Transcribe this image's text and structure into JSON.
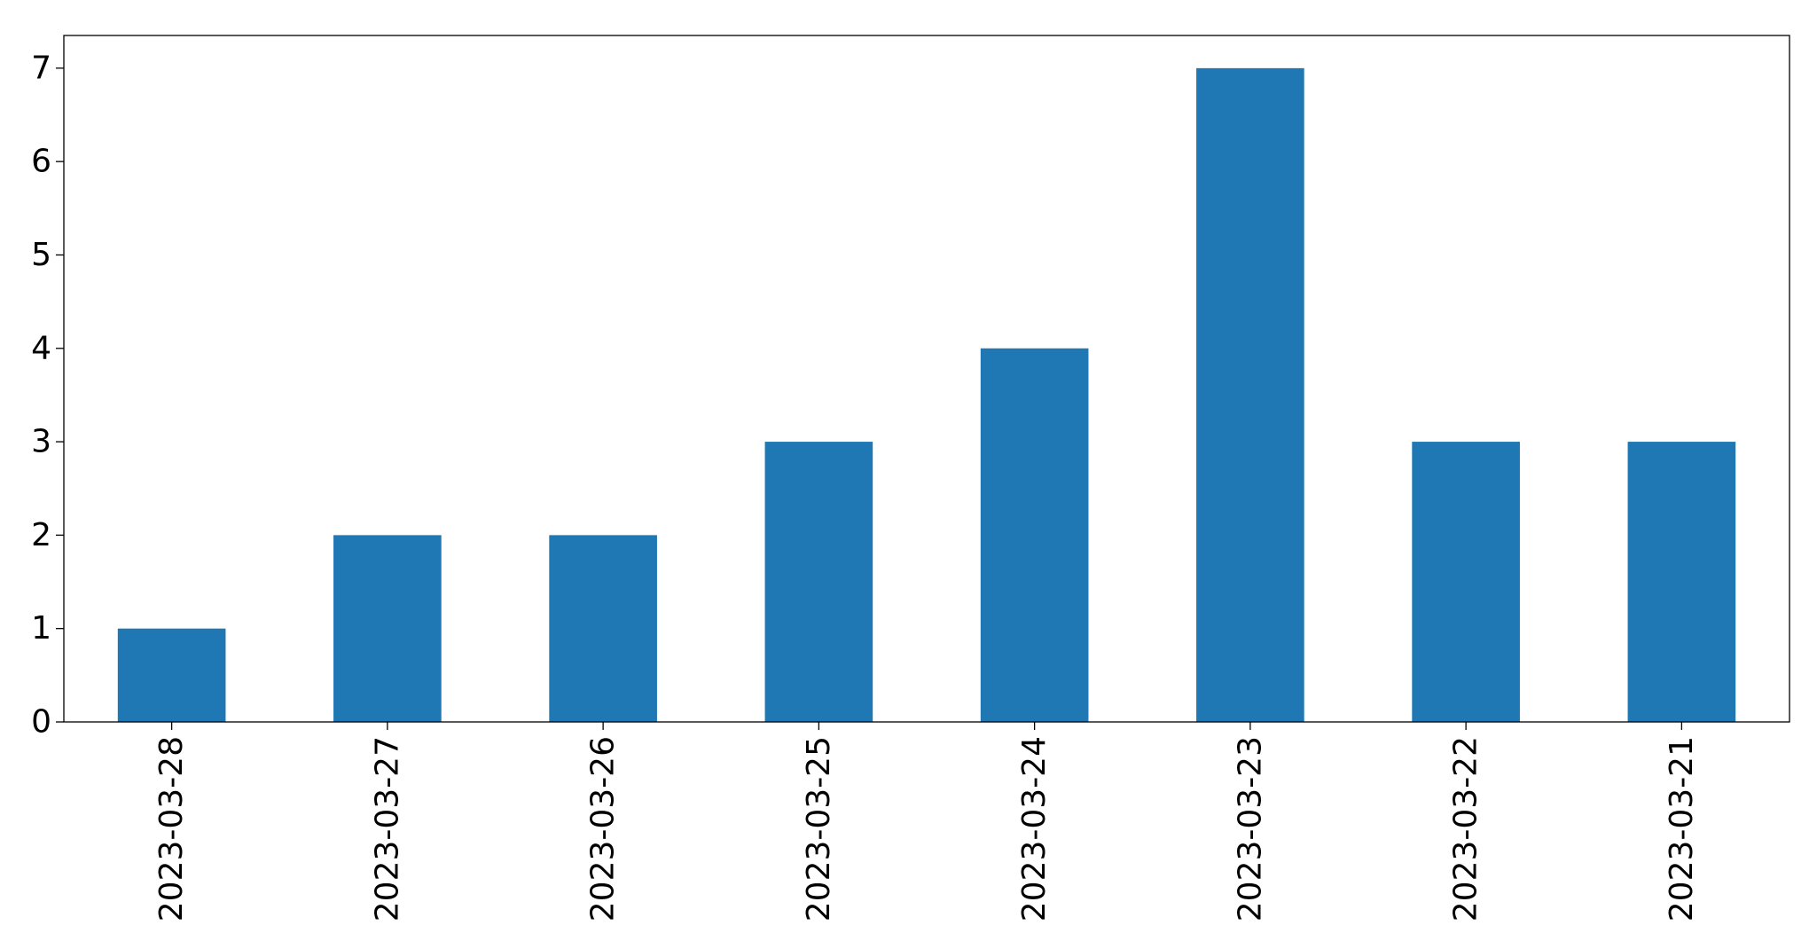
{
  "chart_data": {
    "type": "bar",
    "categories": [
      "2023-03-28",
      "2023-03-27",
      "2023-03-26",
      "2023-03-25",
      "2023-03-24",
      "2023-03-23",
      "2023-03-22",
      "2023-03-21"
    ],
    "values": [
      1,
      2,
      2,
      3,
      4,
      7,
      3,
      3
    ],
    "ylim": [
      0,
      7.35
    ],
    "yticks": [
      "0",
      "1",
      "2",
      "3",
      "4",
      "5",
      "6",
      "7"
    ],
    "bar_color": "#1f77b4",
    "grid": false,
    "legend": "none"
  }
}
